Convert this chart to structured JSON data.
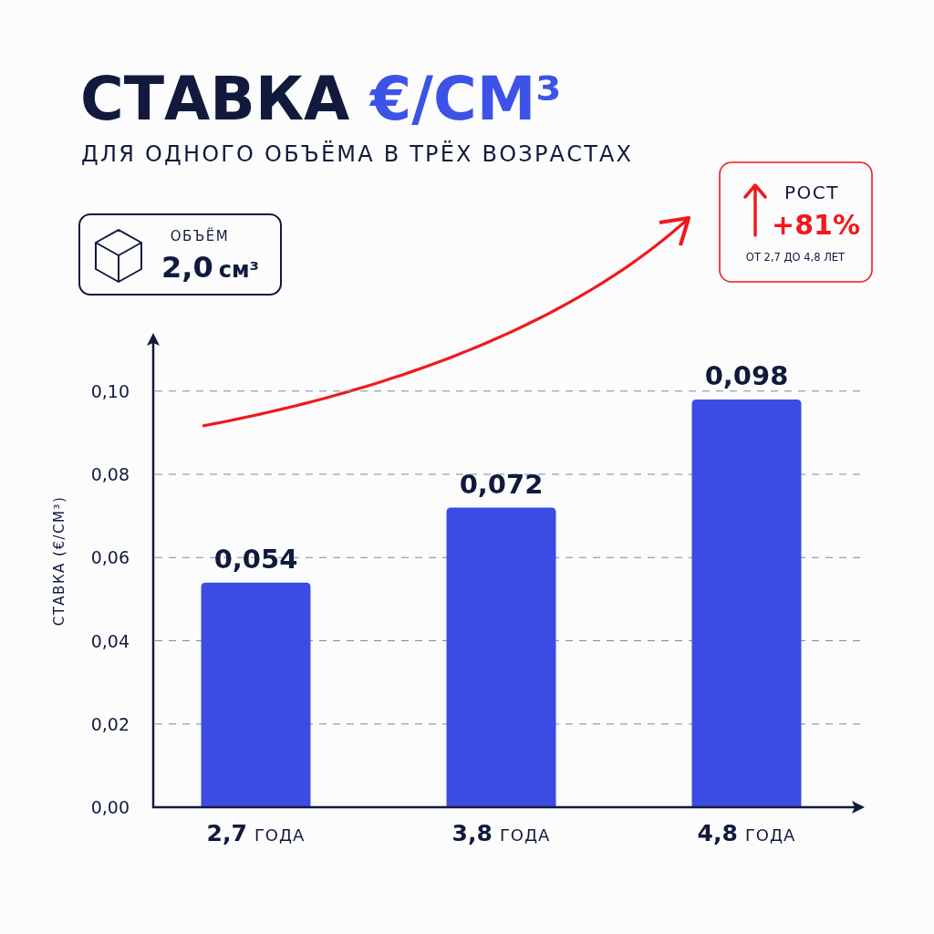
{
  "chart_data": {
    "type": "bar",
    "title": "СТАВКА €/СМ³",
    "subtitle": "ДЛЯ ОДНОГО ОБЪЁМА В ТРЁХ ВОЗРАСТАХ",
    "ylabel": "СТАВКА (€/СМ³)",
    "categories": [
      "2,7 ГОДА",
      "3,8 ГОДА",
      "4,8 ГОДА"
    ],
    "values": [
      0.054,
      0.072,
      0.098
    ],
    "value_labels": [
      "0,054",
      "0,072",
      "0,098"
    ],
    "color": "#3a4ce3",
    "ylim": [
      0,
      0.112
    ],
    "yticks": [
      {
        "value": 0,
        "label": "0,00"
      },
      {
        "value": 0.02,
        "label": "0,02"
      },
      {
        "value": 0.04,
        "label": "0,04"
      },
      {
        "value": 0.06,
        "label": "0,06"
      },
      {
        "value": 0.08,
        "label": "0,08"
      },
      {
        "value": 0.1,
        "label": "0,10"
      }
    ],
    "grid": "y",
    "annotations": [
      "ОБЪЁМ",
      "2,0 см³",
      "РОСТ",
      "+81%",
      "ОТ 2,7 ДО 4,8 ЛЕТ"
    ]
  }
}
